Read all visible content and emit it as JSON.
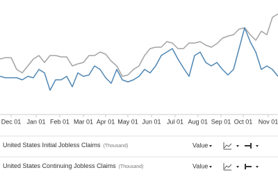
{
  "chart_data": {
    "type": "line",
    "x": [
      0,
      1,
      2,
      3,
      4,
      5,
      6,
      7,
      8,
      9,
      10,
      11,
      12,
      13,
      14,
      15,
      16,
      17,
      18,
      19,
      20,
      21,
      22,
      23,
      24,
      25,
      26,
      27,
      28,
      29,
      30,
      31,
      32,
      33,
      34,
      35,
      36,
      37,
      38,
      39,
      40,
      41,
      42,
      43,
      44,
      45,
      46,
      47,
      48,
      49,
      50
    ],
    "xlim": [
      0,
      50
    ],
    "xticks": [
      {
        "value": 2,
        "label": "Dec 01"
      },
      {
        "value": 6.5,
        "label": "Jan 01"
      },
      {
        "value": 10.75,
        "label": "Feb 01"
      },
      {
        "value": 15,
        "label": "Mar 01"
      },
      {
        "value": 19,
        "label": "Apr 01"
      },
      {
        "value": 23,
        "label": "May 01"
      },
      {
        "value": 27.25,
        "label": "Jun 01"
      },
      {
        "value": 31.5,
        "label": "Jul 01"
      },
      {
        "value": 35.6,
        "label": "Aug 01"
      },
      {
        "value": 39.75,
        "label": "Sep 01"
      },
      {
        "value": 43.75,
        "label": "Oct 01"
      },
      {
        "value": 48.25,
        "label": "Nov 01"
      }
    ],
    "ylim": [
      0,
      165
    ],
    "series": [
      {
        "name": "United States Initial Jobless Claims",
        "unit": "(Thousand)",
        "display": "Value",
        "color": "#4f86b3",
        "values": [
          55,
          53,
          53,
          53,
          50,
          55,
          53,
          65,
          60,
          35,
          50,
          50,
          55,
          40,
          60,
          55,
          57,
          70,
          65,
          53,
          45,
          65,
          50,
          47,
          50,
          55,
          65,
          60,
          70,
          85,
          90,
          95,
          80,
          67,
          55,
          85,
          90,
          75,
          70,
          75,
          65,
          57,
          65,
          95,
          125,
          105,
          90,
          65,
          70,
          65,
          55
        ]
      },
      {
        "name": "United States Continuing Jobless Claims",
        "unit": "(Thousand)",
        "display": "Value",
        "color": "#a3a3a3",
        "values": [
          80,
          82,
          82,
          65,
          60,
          70,
          80,
          85,
          75,
          85,
          85,
          83,
          83,
          70,
          73,
          75,
          85,
          85,
          90,
          87,
          77,
          70,
          55,
          57,
          65,
          70,
          85,
          95,
          97,
          97,
          105,
          103,
          95,
          95,
          103,
          103,
          105,
          100,
          97,
          102,
          110,
          113,
          115,
          123,
          125,
          115,
          107,
          120,
          115,
          140,
          145
        ]
      }
    ]
  }
}
